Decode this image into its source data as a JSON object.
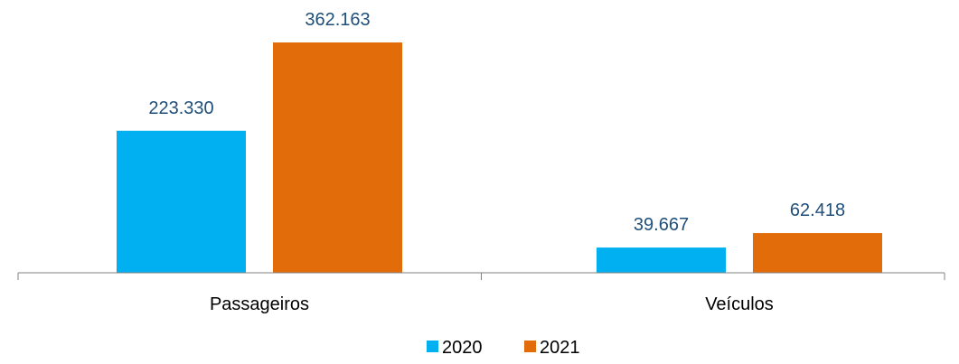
{
  "chart_data": {
    "type": "bar",
    "categories": [
      "Passageiros",
      "Veículos"
    ],
    "series": [
      {
        "name": "2020",
        "values": [
          223330,
          39667
        ],
        "labels": [
          "223.330",
          "39.667"
        ],
        "color": "#00b0f0"
      },
      {
        "name": "2021",
        "values": [
          362163,
          62418
        ],
        "labels": [
          "362.163",
          "62.418"
        ],
        "color": "#e36c0a"
      }
    ],
    "title": "",
    "xlabel": "",
    "ylabel": "",
    "ylim": [
      0,
      400000
    ],
    "grid": false,
    "legend_position": "bottom"
  }
}
